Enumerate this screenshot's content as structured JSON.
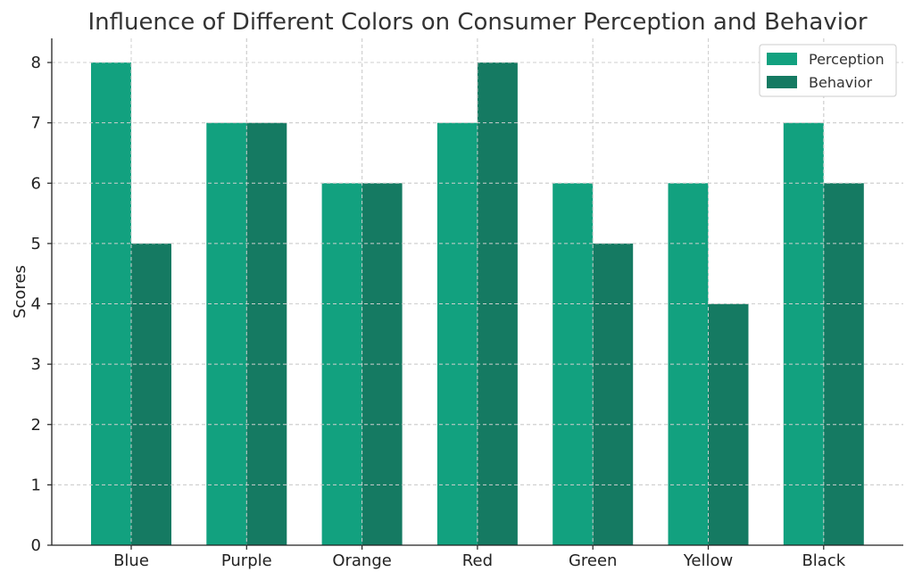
{
  "chart_data": {
    "type": "bar",
    "title": "Influence of Different Colors on Consumer Perception and Behavior",
    "xlabel": "",
    "ylabel": "Scores",
    "categories": [
      "Blue",
      "Purple",
      "Orange",
      "Red",
      "Green",
      "Yellow",
      "Black"
    ],
    "series": [
      {
        "name": "Perception",
        "color": "#12a17f",
        "values": [
          8,
          7,
          6,
          7,
          6,
          6,
          7
        ]
      },
      {
        "name": "Behavior",
        "color": "#157a62",
        "values": [
          5,
          7,
          6,
          8,
          5,
          4,
          6
        ]
      }
    ],
    "ylim": [
      0,
      8.4
    ],
    "yticks": [
      0,
      1,
      2,
      3,
      4,
      5,
      6,
      7,
      8
    ],
    "grid": true,
    "legend_position": "top-right"
  }
}
